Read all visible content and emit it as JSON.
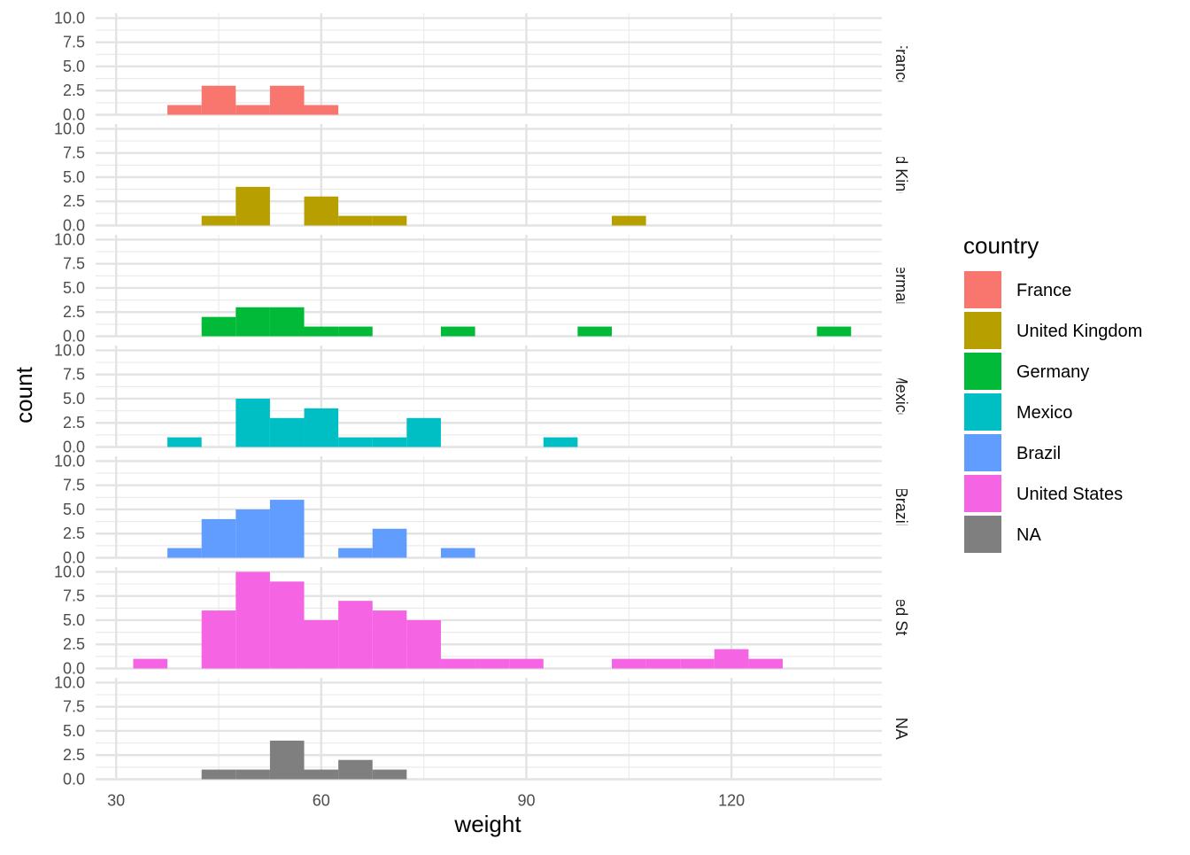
{
  "chart_data": {
    "type": "bar",
    "subtype": "faceted-histogram",
    "xlabel": "weight",
    "ylabel": "count",
    "xlim": [
      27,
      142
    ],
    "ylim": [
      0,
      10.5
    ],
    "x_ticks": [
      30,
      60,
      90,
      120
    ],
    "x_tick_labels": [
      "30",
      "60",
      "90",
      "120"
    ],
    "y_ticks": [
      0,
      2.5,
      5,
      7.5,
      10
    ],
    "y_tick_labels": [
      "0.0",
      "2.5",
      "5.0",
      "7.5",
      "10.0"
    ],
    "binwidth": 5,
    "grid": true,
    "legend": {
      "title": "country",
      "placement": "right",
      "entries": [
        {
          "label": "France",
          "color": "#F8766D"
        },
        {
          "label": "United Kingdom",
          "color": "#B79F00"
        },
        {
          "label": "Germany",
          "color": "#00BA38"
        },
        {
          "label": "Mexico",
          "color": "#00BFC4"
        },
        {
          "label": "Brazil",
          "color": "#619CFF"
        },
        {
          "label": "United States",
          "color": "#F564E3"
        },
        {
          "label": "NA",
          "color": "#7F7F7F"
        }
      ]
    },
    "facets": [
      {
        "strip": "France",
        "color": "#F8766D",
        "bins": [
          {
            "x": 40,
            "count": 1
          },
          {
            "x": 45,
            "count": 3
          },
          {
            "x": 50,
            "count": 1
          },
          {
            "x": 55,
            "count": 3
          },
          {
            "x": 60,
            "count": 1
          }
        ]
      },
      {
        "strip": "United Kingdom",
        "color": "#B79F00",
        "bins": [
          {
            "x": 45,
            "count": 1
          },
          {
            "x": 50,
            "count": 4
          },
          {
            "x": 60,
            "count": 3
          },
          {
            "x": 65,
            "count": 1
          },
          {
            "x": 70,
            "count": 1
          },
          {
            "x": 105,
            "count": 1
          }
        ]
      },
      {
        "strip": "Germany",
        "color": "#00BA38",
        "bins": [
          {
            "x": 45,
            "count": 2
          },
          {
            "x": 50,
            "count": 3
          },
          {
            "x": 55,
            "count": 3
          },
          {
            "x": 60,
            "count": 1
          },
          {
            "x": 65,
            "count": 1
          },
          {
            "x": 80,
            "count": 1
          },
          {
            "x": 100,
            "count": 1
          },
          {
            "x": 135,
            "count": 1
          }
        ]
      },
      {
        "strip": "Mexico",
        "color": "#00BFC4",
        "bins": [
          {
            "x": 40,
            "count": 1
          },
          {
            "x": 50,
            "count": 5
          },
          {
            "x": 55,
            "count": 3
          },
          {
            "x": 60,
            "count": 4
          },
          {
            "x": 65,
            "count": 1
          },
          {
            "x": 70,
            "count": 1
          },
          {
            "x": 75,
            "count": 3
          },
          {
            "x": 95,
            "count": 1
          }
        ]
      },
      {
        "strip": "Brazil",
        "color": "#619CFF",
        "bins": [
          {
            "x": 40,
            "count": 1
          },
          {
            "x": 45,
            "count": 4
          },
          {
            "x": 50,
            "count": 5
          },
          {
            "x": 55,
            "count": 6
          },
          {
            "x": 65,
            "count": 1
          },
          {
            "x": 70,
            "count": 3
          },
          {
            "x": 80,
            "count": 1
          }
        ]
      },
      {
        "strip": "United States",
        "color": "#F564E3",
        "bins": [
          {
            "x": 35,
            "count": 1
          },
          {
            "x": 45,
            "count": 6
          },
          {
            "x": 50,
            "count": 10
          },
          {
            "x": 55,
            "count": 9
          },
          {
            "x": 60,
            "count": 5
          },
          {
            "x": 65,
            "count": 7
          },
          {
            "x": 70,
            "count": 6
          },
          {
            "x": 75,
            "count": 5
          },
          {
            "x": 80,
            "count": 1
          },
          {
            "x": 85,
            "count": 1
          },
          {
            "x": 90,
            "count": 1
          },
          {
            "x": 105,
            "count": 1
          },
          {
            "x": 110,
            "count": 1
          },
          {
            "x": 115,
            "count": 1
          },
          {
            "x": 120,
            "count": 2
          },
          {
            "x": 125,
            "count": 1
          }
        ]
      },
      {
        "strip": "NA",
        "color": "#7F7F7F",
        "bins": [
          {
            "x": 45,
            "count": 1
          },
          {
            "x": 50,
            "count": 1
          },
          {
            "x": 55,
            "count": 4
          },
          {
            "x": 60,
            "count": 1
          },
          {
            "x": 65,
            "count": 2
          },
          {
            "x": 70,
            "count": 1
          }
        ]
      }
    ]
  }
}
